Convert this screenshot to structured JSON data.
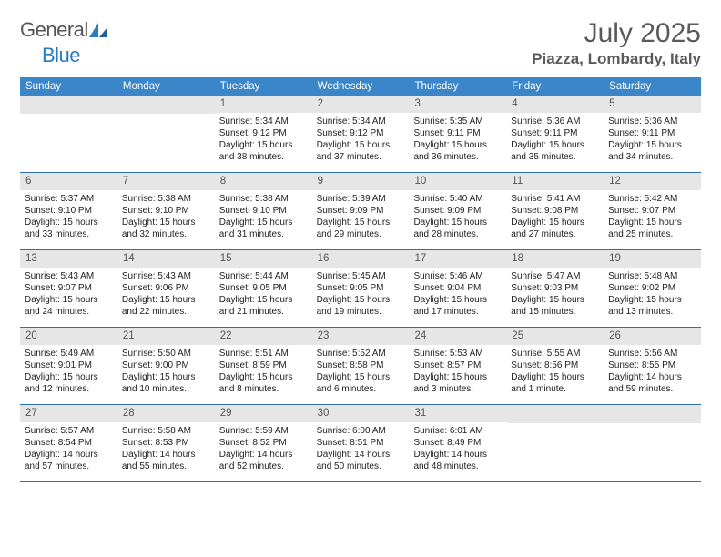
{
  "brand": {
    "word1": "General",
    "word2": "Blue"
  },
  "title": "July 2025",
  "location": "Piazza, Lombardy, Italy",
  "colors": {
    "header_bg": "#3a86c8",
    "daynum_bg": "#e6e6e6",
    "week_border": "#2d6fa8",
    "text": "#5a5a5a"
  },
  "dow": [
    "Sunday",
    "Monday",
    "Tuesday",
    "Wednesday",
    "Thursday",
    "Friday",
    "Saturday"
  ],
  "weeks": [
    [
      null,
      null,
      {
        "n": "1",
        "sr": "Sunrise: 5:34 AM",
        "ss": "Sunset: 9:12 PM",
        "dl": "Daylight: 15 hours and 38 minutes."
      },
      {
        "n": "2",
        "sr": "Sunrise: 5:34 AM",
        "ss": "Sunset: 9:12 PM",
        "dl": "Daylight: 15 hours and 37 minutes."
      },
      {
        "n": "3",
        "sr": "Sunrise: 5:35 AM",
        "ss": "Sunset: 9:11 PM",
        "dl": "Daylight: 15 hours and 36 minutes."
      },
      {
        "n": "4",
        "sr": "Sunrise: 5:36 AM",
        "ss": "Sunset: 9:11 PM",
        "dl": "Daylight: 15 hours and 35 minutes."
      },
      {
        "n": "5",
        "sr": "Sunrise: 5:36 AM",
        "ss": "Sunset: 9:11 PM",
        "dl": "Daylight: 15 hours and 34 minutes."
      }
    ],
    [
      {
        "n": "6",
        "sr": "Sunrise: 5:37 AM",
        "ss": "Sunset: 9:10 PM",
        "dl": "Daylight: 15 hours and 33 minutes."
      },
      {
        "n": "7",
        "sr": "Sunrise: 5:38 AM",
        "ss": "Sunset: 9:10 PM",
        "dl": "Daylight: 15 hours and 32 minutes."
      },
      {
        "n": "8",
        "sr": "Sunrise: 5:38 AM",
        "ss": "Sunset: 9:10 PM",
        "dl": "Daylight: 15 hours and 31 minutes."
      },
      {
        "n": "9",
        "sr": "Sunrise: 5:39 AM",
        "ss": "Sunset: 9:09 PM",
        "dl": "Daylight: 15 hours and 29 minutes."
      },
      {
        "n": "10",
        "sr": "Sunrise: 5:40 AM",
        "ss": "Sunset: 9:09 PM",
        "dl": "Daylight: 15 hours and 28 minutes."
      },
      {
        "n": "11",
        "sr": "Sunrise: 5:41 AM",
        "ss": "Sunset: 9:08 PM",
        "dl": "Daylight: 15 hours and 27 minutes."
      },
      {
        "n": "12",
        "sr": "Sunrise: 5:42 AM",
        "ss": "Sunset: 9:07 PM",
        "dl": "Daylight: 15 hours and 25 minutes."
      }
    ],
    [
      {
        "n": "13",
        "sr": "Sunrise: 5:43 AM",
        "ss": "Sunset: 9:07 PM",
        "dl": "Daylight: 15 hours and 24 minutes."
      },
      {
        "n": "14",
        "sr": "Sunrise: 5:43 AM",
        "ss": "Sunset: 9:06 PM",
        "dl": "Daylight: 15 hours and 22 minutes."
      },
      {
        "n": "15",
        "sr": "Sunrise: 5:44 AM",
        "ss": "Sunset: 9:05 PM",
        "dl": "Daylight: 15 hours and 21 minutes."
      },
      {
        "n": "16",
        "sr": "Sunrise: 5:45 AM",
        "ss": "Sunset: 9:05 PM",
        "dl": "Daylight: 15 hours and 19 minutes."
      },
      {
        "n": "17",
        "sr": "Sunrise: 5:46 AM",
        "ss": "Sunset: 9:04 PM",
        "dl": "Daylight: 15 hours and 17 minutes."
      },
      {
        "n": "18",
        "sr": "Sunrise: 5:47 AM",
        "ss": "Sunset: 9:03 PM",
        "dl": "Daylight: 15 hours and 15 minutes."
      },
      {
        "n": "19",
        "sr": "Sunrise: 5:48 AM",
        "ss": "Sunset: 9:02 PM",
        "dl": "Daylight: 15 hours and 13 minutes."
      }
    ],
    [
      {
        "n": "20",
        "sr": "Sunrise: 5:49 AM",
        "ss": "Sunset: 9:01 PM",
        "dl": "Daylight: 15 hours and 12 minutes."
      },
      {
        "n": "21",
        "sr": "Sunrise: 5:50 AM",
        "ss": "Sunset: 9:00 PM",
        "dl": "Daylight: 15 hours and 10 minutes."
      },
      {
        "n": "22",
        "sr": "Sunrise: 5:51 AM",
        "ss": "Sunset: 8:59 PM",
        "dl": "Daylight: 15 hours and 8 minutes."
      },
      {
        "n": "23",
        "sr": "Sunrise: 5:52 AM",
        "ss": "Sunset: 8:58 PM",
        "dl": "Daylight: 15 hours and 6 minutes."
      },
      {
        "n": "24",
        "sr": "Sunrise: 5:53 AM",
        "ss": "Sunset: 8:57 PM",
        "dl": "Daylight: 15 hours and 3 minutes."
      },
      {
        "n": "25",
        "sr": "Sunrise: 5:55 AM",
        "ss": "Sunset: 8:56 PM",
        "dl": "Daylight: 15 hours and 1 minute."
      },
      {
        "n": "26",
        "sr": "Sunrise: 5:56 AM",
        "ss": "Sunset: 8:55 PM",
        "dl": "Daylight: 14 hours and 59 minutes."
      }
    ],
    [
      {
        "n": "27",
        "sr": "Sunrise: 5:57 AM",
        "ss": "Sunset: 8:54 PM",
        "dl": "Daylight: 14 hours and 57 minutes."
      },
      {
        "n": "28",
        "sr": "Sunrise: 5:58 AM",
        "ss": "Sunset: 8:53 PM",
        "dl": "Daylight: 14 hours and 55 minutes."
      },
      {
        "n": "29",
        "sr": "Sunrise: 5:59 AM",
        "ss": "Sunset: 8:52 PM",
        "dl": "Daylight: 14 hours and 52 minutes."
      },
      {
        "n": "30",
        "sr": "Sunrise: 6:00 AM",
        "ss": "Sunset: 8:51 PM",
        "dl": "Daylight: 14 hours and 50 minutes."
      },
      {
        "n": "31",
        "sr": "Sunrise: 6:01 AM",
        "ss": "Sunset: 8:49 PM",
        "dl": "Daylight: 14 hours and 48 minutes."
      },
      null,
      null
    ]
  ]
}
